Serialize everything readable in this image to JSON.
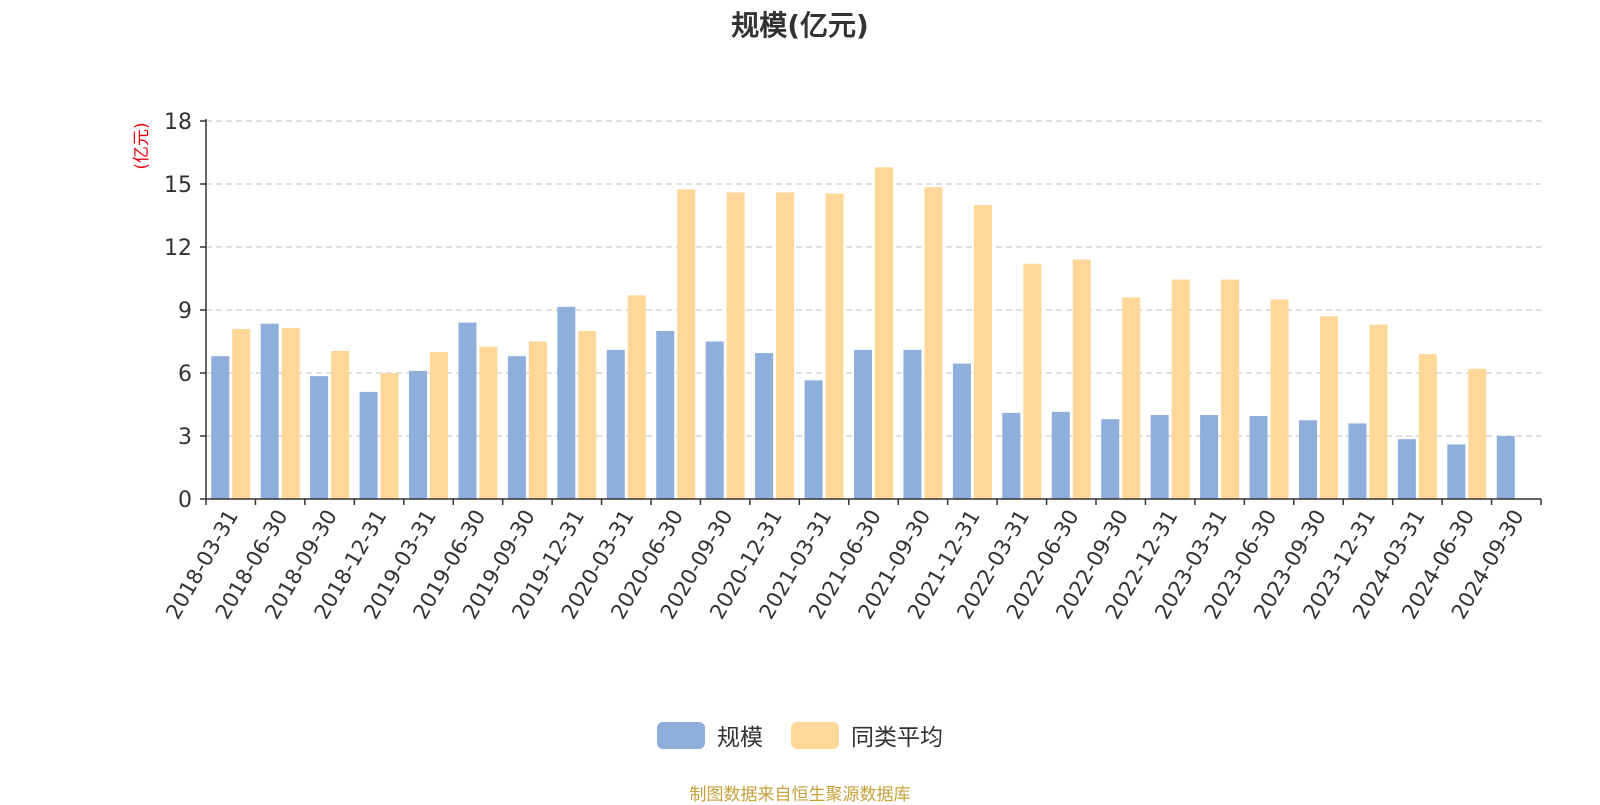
{
  "chart_data": {
    "type": "bar",
    "title": "规模(亿元)",
    "ylabel": "(亿元)",
    "xlabel": "",
    "ylim": [
      0,
      18
    ],
    "yticks": [
      0,
      3,
      6,
      9,
      12,
      15,
      18
    ],
    "grid": true,
    "legend_position": "bottom",
    "categories": [
      "2018-03-31",
      "2018-06-30",
      "2018-09-30",
      "2018-12-31",
      "2019-03-31",
      "2019-06-30",
      "2019-09-30",
      "2019-12-31",
      "2020-03-31",
      "2020-06-30",
      "2020-09-30",
      "2020-12-31",
      "2021-03-31",
      "2021-06-30",
      "2021-09-30",
      "2021-12-31",
      "2022-03-31",
      "2022-06-30",
      "2022-09-30",
      "2022-12-31",
      "2023-03-31",
      "2023-06-30",
      "2023-09-30",
      "2023-12-31",
      "2024-03-31",
      "2024-06-30",
      "2024-09-30"
    ],
    "series": [
      {
        "name": "规模",
        "color": "#8EAEDB",
        "values": [
          6.8,
          8.35,
          5.85,
          5.1,
          6.1,
          8.4,
          6.8,
          9.15,
          7.1,
          8.0,
          7.5,
          6.95,
          5.65,
          7.1,
          7.1,
          6.45,
          4.1,
          4.15,
          3.8,
          4.0,
          4.0,
          3.95,
          3.75,
          3.6,
          2.85,
          2.6,
          3.0
        ]
      },
      {
        "name": "同类平均",
        "color": "#FFD899",
        "values": [
          8.1,
          8.15,
          7.05,
          6.0,
          7.0,
          7.25,
          7.5,
          8.0,
          9.7,
          14.75,
          14.6,
          14.6,
          14.55,
          15.8,
          14.85,
          14.0,
          11.2,
          11.4,
          9.6,
          10.45,
          10.45,
          9.5,
          8.7,
          8.3,
          6.9,
          6.2,
          null
        ]
      }
    ]
  },
  "source_note": "制图数据来自恒生聚源数据库"
}
